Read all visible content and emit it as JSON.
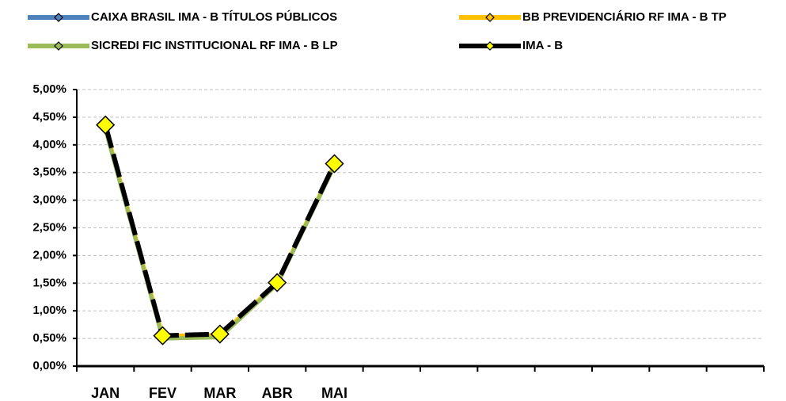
{
  "chart_data": {
    "type": "line",
    "categories": [
      "JAN",
      "FEV",
      "MAR",
      "ABR",
      "MAI",
      null,
      null,
      null,
      null,
      null,
      null,
      null
    ],
    "series": [
      {
        "name": "CAIXA BRASIL IMA - B TÍTULOS PÚBLICOS",
        "color": "#4f81bd",
        "values": [
          4.3,
          0.5,
          0.53,
          1.49,
          3.64,
          null,
          null,
          null,
          null,
          null,
          null,
          null
        ]
      },
      {
        "name": "BB PREVIDENCIÁRIO RF IMA - B TP",
        "color": "#ffc000",
        "values": [
          4.33,
          0.55,
          0.56,
          1.5,
          3.65,
          null,
          null,
          null,
          null,
          null,
          null,
          null
        ]
      },
      {
        "name": "SICREDI FIC INSTITUCIONAL RF IMA - B LP",
        "color": "#9bbb59",
        "values": [
          4.28,
          0.5,
          0.52,
          1.48,
          3.62,
          null,
          null,
          null,
          null,
          null,
          null,
          null
        ]
      },
      {
        "name": "IMA - B",
        "color": "#000000",
        "marker_color": "#ffff00",
        "dashed": true,
        "values": [
          4.36,
          0.55,
          0.58,
          1.51,
          3.66,
          null,
          null,
          null,
          null,
          null,
          null,
          null
        ]
      }
    ],
    "ylim": [
      0,
      5
    ],
    "yticks": [
      {
        "value": 0,
        "label": "0,00%"
      },
      {
        "value": 0.5,
        "label": "0,50%"
      },
      {
        "value": 1,
        "label": "1,00%"
      },
      {
        "value": 1.5,
        "label": "1,50%"
      },
      {
        "value": 2,
        "label": "2,00%"
      },
      {
        "value": 2.5,
        "label": "2,50%"
      },
      {
        "value": 3,
        "label": "3,00%"
      },
      {
        "value": 3.5,
        "label": "3,50%"
      },
      {
        "value": 4,
        "label": "4,00%"
      },
      {
        "value": 4.5,
        "label": "4,50%"
      },
      {
        "value": 5,
        "label": "5,00%"
      }
    ],
    "grid": true,
    "legend": "top"
  }
}
